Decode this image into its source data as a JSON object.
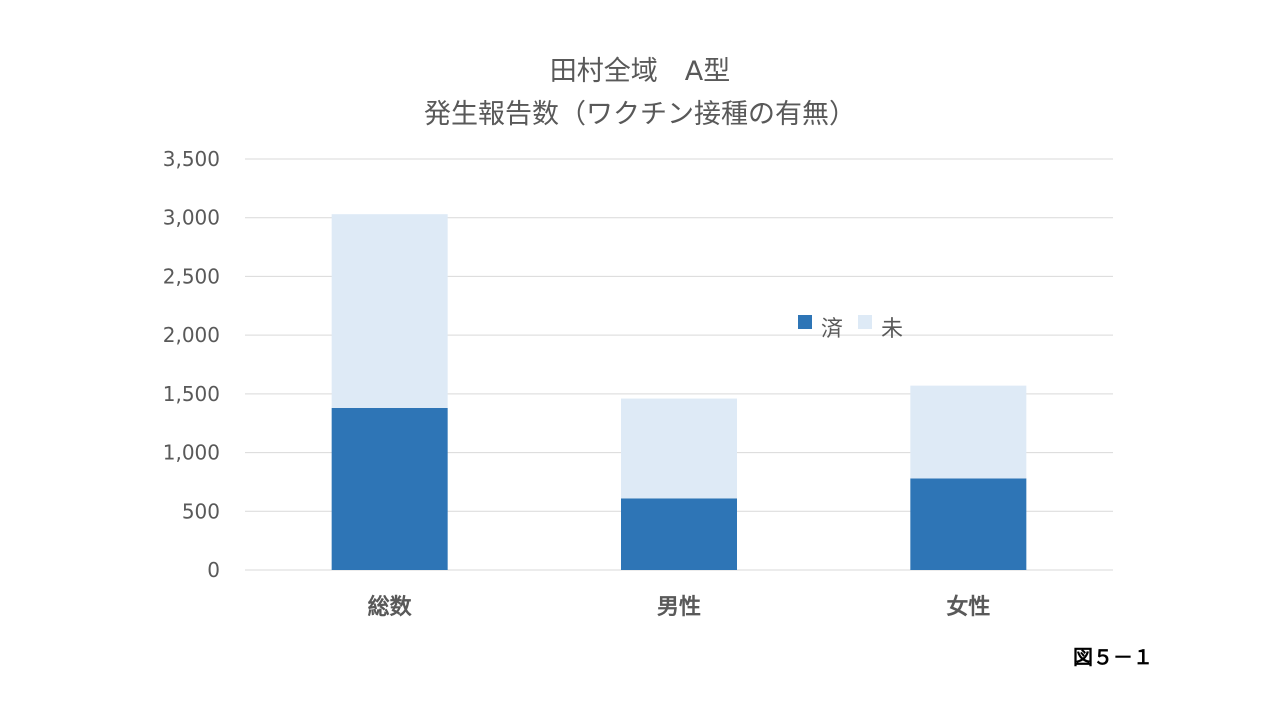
{
  "chart_data": {
    "type": "bar",
    "stacked": true,
    "title": [
      "田村全域　A型",
      "発生報告数（ワクチン接種の有無）"
    ],
    "categories": [
      "総数",
      "男性",
      "女性"
    ],
    "series": [
      {
        "name": "済",
        "values": [
          1380,
          610,
          780
        ],
        "color": "#2E75B6"
      },
      {
        "name": "未",
        "values": [
          1650,
          850,
          790
        ],
        "color": "#DEEAF6"
      }
    ],
    "yticks": [
      "0",
      "500",
      "1,000",
      "1,500",
      "2,000",
      "2,500",
      "3,000",
      "3,500"
    ],
    "ylim": [
      0,
      3500
    ],
    "grid": true,
    "legend": "top-right"
  },
  "figure_label": "図５－１"
}
